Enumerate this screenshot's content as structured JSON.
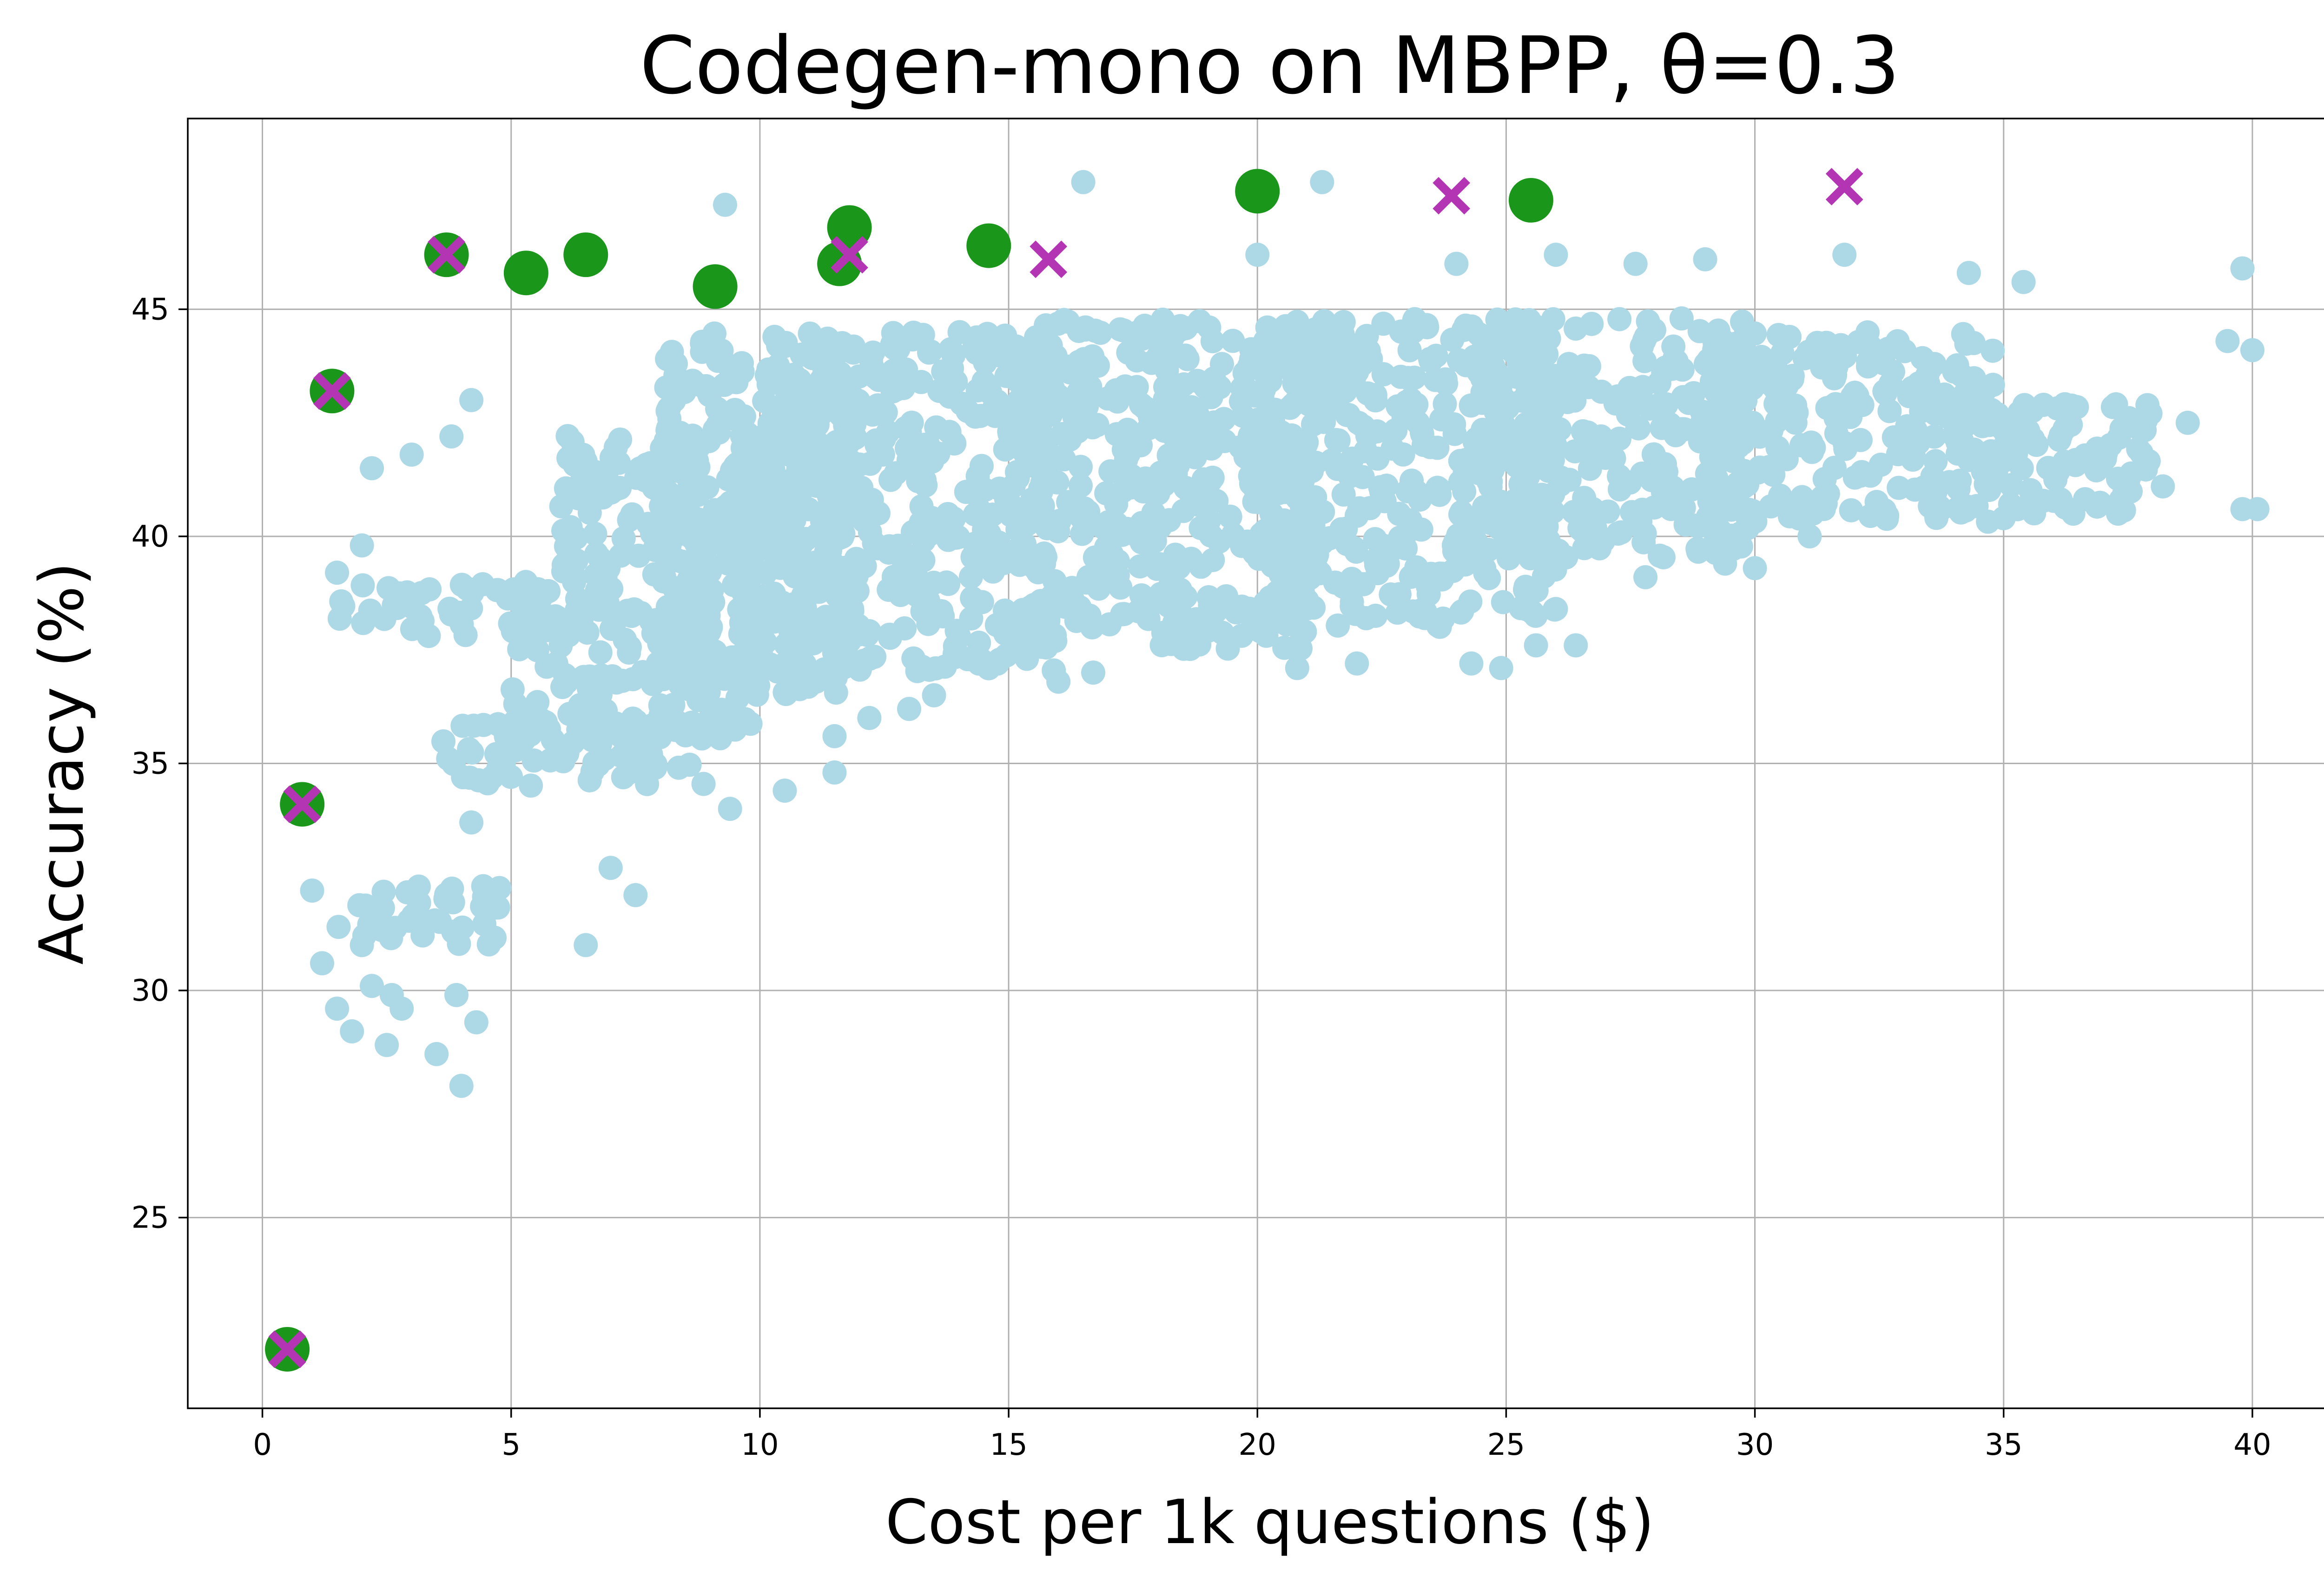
{
  "chart_data": {
    "type": "scatter",
    "title": "Codegen-mono on MBPP, θ=0.3",
    "xlabel": "Cost per 1k questions ($)",
    "ylabel": "Accuracy (%)",
    "xlim": [
      -1.5,
      42
    ],
    "ylim": [
      20.8,
      49.2
    ],
    "xticks": [
      0,
      5,
      10,
      15,
      20,
      25,
      30,
      35,
      40
    ],
    "yticks": [
      25,
      30,
      35,
      40,
      45
    ],
    "grid": true,
    "legend": "none",
    "background_cloud": {
      "color": "#add8e6",
      "anchors": [
        [
          0.8,
          34.1
        ],
        [
          1.0,
          32.2
        ],
        [
          1.2,
          30.6
        ],
        [
          1.5,
          29.6
        ],
        [
          1.8,
          29.1
        ],
        [
          2.0,
          31.0
        ],
        [
          2.2,
          30.1
        ],
        [
          2.5,
          28.8
        ],
        [
          2.6,
          29.9
        ],
        [
          2.8,
          29.6
        ],
        [
          3.5,
          28.6
        ],
        [
          3.9,
          29.9
        ],
        [
          4.0,
          27.9
        ],
        [
          4.3,
          29.3
        ],
        [
          4.2,
          33.7
        ],
        [
          6.5,
          31.0
        ],
        [
          7.0,
          32.7
        ],
        [
          7.5,
          32.1
        ],
        [
          1.5,
          39.2
        ],
        [
          2.0,
          39.8
        ],
        [
          2.2,
          41.5
        ],
        [
          3.0,
          41.8
        ],
        [
          3.8,
          42.2
        ],
        [
          4.2,
          43.0
        ],
        [
          9.3,
          47.3
        ],
        [
          9.4,
          34.0
        ],
        [
          10.5,
          34.4
        ],
        [
          11.5,
          34.8
        ],
        [
          11.5,
          35.6
        ],
        [
          12.2,
          36.0
        ],
        [
          13.0,
          36.2
        ],
        [
          13.5,
          36.5
        ],
        [
          16.5,
          47.8
        ],
        [
          20.0,
          46.2
        ],
        [
          21.3,
          47.8
        ],
        [
          24.0,
          46.0
        ],
        [
          26.0,
          46.2
        ],
        [
          27.6,
          46.0
        ],
        [
          29.0,
          46.1
        ],
        [
          31.8,
          46.2
        ],
        [
          34.3,
          45.8
        ],
        [
          35.4,
          45.6
        ],
        [
          39.8,
          45.9
        ],
        [
          39.5,
          44.3
        ],
        [
          40.0,
          44.1
        ],
        [
          40.1,
          40.6
        ],
        [
          39.8,
          40.6
        ],
        [
          38.7,
          42.5
        ],
        [
          38.2,
          41.1
        ],
        [
          37.3,
          40.5
        ],
        [
          36.4,
          40.5
        ],
        [
          35.0,
          40.4
        ],
        [
          26.0,
          38.4
        ],
        [
          26.4,
          37.6
        ],
        [
          25.6,
          37.6
        ],
        [
          24.9,
          37.1
        ],
        [
          24.3,
          37.2
        ],
        [
          22.0,
          37.2
        ],
        [
          20.8,
          37.1
        ],
        [
          16.0,
          36.8
        ],
        [
          16.7,
          37.0
        ],
        [
          29.4,
          39.4
        ],
        [
          30.0,
          39.3
        ],
        [
          31.1,
          40.0
        ],
        [
          27.8,
          39.1
        ]
      ],
      "bands": [
        {
          "x": [
            1.5,
            7.5
          ],
          "y": [
            37.8,
            39.0
          ]
        },
        {
          "x": [
            3.5,
            9.0
          ],
          "y": [
            34.5,
            36.0
          ]
        },
        {
          "x": [
            5.0,
            10.0
          ],
          "y": [
            35.5,
            38.5
          ]
        },
        {
          "x": [
            1.5,
            4.8
          ],
          "y": [
            31.0,
            32.3
          ]
        },
        {
          "x": [
            6.0,
            10.0
          ],
          "y": [
            39.0,
            42.5
          ]
        },
        {
          "x": [
            8.0,
            12.0
          ],
          "y": [
            36.5,
            44.5
          ]
        },
        {
          "x": [
            10.0,
            16.0
          ],
          "y": [
            37.0,
            44.5
          ]
        },
        {
          "x": [
            15.0,
            21.0
          ],
          "y": [
            37.5,
            44.8
          ]
        },
        {
          "x": [
            20.0,
            26.0
          ],
          "y": [
            38.0,
            44.8
          ]
        },
        {
          "x": [
            24.5,
            30.0
          ],
          "y": [
            39.5,
            44.8
          ]
        },
        {
          "x": [
            29.0,
            35.0
          ],
          "y": [
            40.3,
            44.5
          ]
        },
        {
          "x": [
            34.0,
            38.0
          ],
          "y": [
            40.5,
            43.0
          ]
        }
      ]
    },
    "series": [
      {
        "marker": "circle",
        "color": "#1a961a",
        "points": [
          [
            0.5,
            22.1
          ],
          [
            0.8,
            34.1
          ],
          [
            1.4,
            43.2
          ],
          [
            3.7,
            46.2
          ],
          [
            5.3,
            45.8
          ],
          [
            6.5,
            46.2
          ],
          [
            9.1,
            45.5
          ],
          [
            11.6,
            46.0
          ],
          [
            11.8,
            46.8
          ],
          [
            14.6,
            46.4
          ],
          [
            20.0,
            47.6
          ],
          [
            25.5,
            47.4
          ]
        ]
      },
      {
        "marker": "x",
        "color": "#b435b4",
        "points": [
          [
            0.5,
            22.1
          ],
          [
            0.8,
            34.1
          ],
          [
            1.4,
            43.2
          ],
          [
            3.7,
            46.2
          ],
          [
            11.8,
            46.2
          ],
          [
            15.8,
            46.1
          ],
          [
            23.9,
            47.5
          ],
          [
            31.8,
            47.7
          ]
        ]
      }
    ]
  }
}
